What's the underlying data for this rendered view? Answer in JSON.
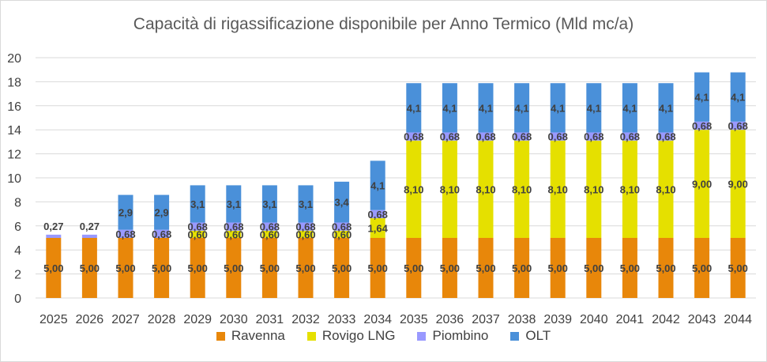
{
  "chart_data": {
    "type": "bar",
    "stacked": true,
    "title": "Capacità di rigassificazione disponibile per Anno Termico (Mld mc/a)",
    "xlabel": "",
    "ylabel": "",
    "ylim": [
      0,
      20
    ],
    "yticks": [
      "0",
      "2",
      "4",
      "6",
      "8",
      "10",
      "12",
      "14",
      "16",
      "18",
      "20"
    ],
    "grid": true,
    "legend_position": "bottom",
    "categories": [
      "2025",
      "2026",
      "2027",
      "2028",
      "2029",
      "2030",
      "2031",
      "2032",
      "2033",
      "2034",
      "2035",
      "2036",
      "2037",
      "2038",
      "2039",
      "2040",
      "2041",
      "2042",
      "2043",
      "2044"
    ],
    "series": [
      {
        "name": "Ravenna",
        "color": "#e8870a",
        "values": [
          5.0,
          5.0,
          5.0,
          5.0,
          5.0,
          5.0,
          5.0,
          5.0,
          5.0,
          5.0,
          5.0,
          5.0,
          5.0,
          5.0,
          5.0,
          5.0,
          5.0,
          5.0,
          5.0,
          5.0
        ],
        "labels": [
          "5,00",
          "5,00",
          "5,00",
          "5,00",
          "5,00",
          "5,00",
          "5,00",
          "5,00",
          "5,00",
          "5,00",
          "5,00",
          "5,00",
          "5,00",
          "5,00",
          "5,00",
          "5,00",
          "5,00",
          "5,00",
          "5,00",
          "5,00"
        ]
      },
      {
        "name": "Rovigo LNG",
        "color": "#e5e000",
        "values": [
          0,
          0,
          0,
          0,
          0.6,
          0.6,
          0.6,
          0.6,
          0.6,
          1.64,
          8.1,
          8.1,
          8.1,
          8.1,
          8.1,
          8.1,
          8.1,
          8.1,
          9.0,
          9.0
        ],
        "labels": [
          "",
          "",
          "",
          "",
          "0,60",
          "0,60",
          "0,60",
          "0,60",
          "0,60",
          "1,64",
          "8,10",
          "8,10",
          "8,10",
          "8,10",
          "8,10",
          "8,10",
          "8,10",
          "8,10",
          "9,00",
          "9,00"
        ]
      },
      {
        "name": "Piombino",
        "color": "#9999ff",
        "values": [
          0.27,
          0.27,
          0.68,
          0.68,
          0.68,
          0.68,
          0.68,
          0.68,
          0.68,
          0.68,
          0.68,
          0.68,
          0.68,
          0.68,
          0.68,
          0.68,
          0.68,
          0.68,
          0.68,
          0.68
        ],
        "labels": [
          "0,27",
          "0,27",
          "0,68",
          "0,68",
          "0,68",
          "0,68",
          "0,68",
          "0,68",
          "0,68",
          "0,68",
          "0,68",
          "0,68",
          "0,68",
          "0,68",
          "0,68",
          "0,68",
          "0,68",
          "0,68",
          "0,68",
          "0,68"
        ]
      },
      {
        "name": "OLT",
        "color": "#4a90d9",
        "values": [
          0,
          0,
          2.9,
          2.9,
          3.1,
          3.1,
          3.1,
          3.1,
          3.4,
          4.1,
          4.1,
          4.1,
          4.1,
          4.1,
          4.1,
          4.1,
          4.1,
          4.1,
          4.1,
          4.1
        ],
        "labels": [
          "",
          "",
          "2,9",
          "2,9",
          "3,1",
          "3,1",
          "3,1",
          "3,1",
          "3,4",
          "4,1",
          "4,1",
          "4,1",
          "4,1",
          "4,1",
          "4,1",
          "4,1",
          "4,1",
          "4,1",
          "4,1",
          "4,1"
        ]
      }
    ]
  }
}
